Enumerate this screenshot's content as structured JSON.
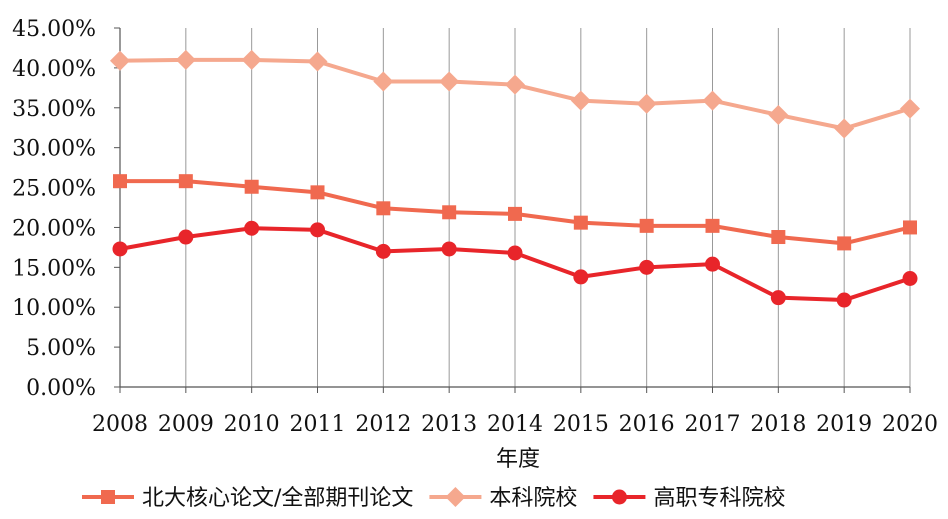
{
  "chart_data": {
    "type": "line",
    "categories": [
      "2008",
      "2009",
      "2010",
      "2011",
      "2012",
      "2013",
      "2014",
      "2015",
      "2016",
      "2017",
      "2018",
      "2019",
      "2020"
    ],
    "xlabel": "年度",
    "ylabel": "",
    "ylim": [
      0,
      45
    ],
    "y_ticks": [
      "0.00%",
      "5.00%",
      "10.00%",
      "15.00%",
      "20.00%",
      "25.00%",
      "30.00%",
      "35.00%",
      "40.00%",
      "45.00%"
    ],
    "grid": "vertical gridlines",
    "legend_position": "bottom",
    "series": [
      {
        "name": "北大核心论文/全部期刊论文",
        "marker": "square",
        "color": "#f0694f",
        "values": [
          25.8,
          25.8,
          25.1,
          24.4,
          22.4,
          21.9,
          21.7,
          20.6,
          20.2,
          20.2,
          18.8,
          18.0,
          20.0
        ]
      },
      {
        "name": "本科院校",
        "marker": "diamond",
        "color": "#f5a88e",
        "values": [
          40.9,
          41.0,
          41.0,
          40.8,
          38.3,
          38.3,
          37.9,
          35.9,
          35.5,
          35.9,
          34.1,
          32.4,
          34.9
        ]
      },
      {
        "name": "高职专科院校",
        "marker": "circle",
        "color": "#e8252a",
        "values": [
          17.3,
          18.8,
          19.9,
          19.7,
          17.0,
          17.3,
          16.8,
          13.8,
          15.0,
          15.4,
          11.2,
          10.9,
          13.6
        ]
      }
    ]
  }
}
